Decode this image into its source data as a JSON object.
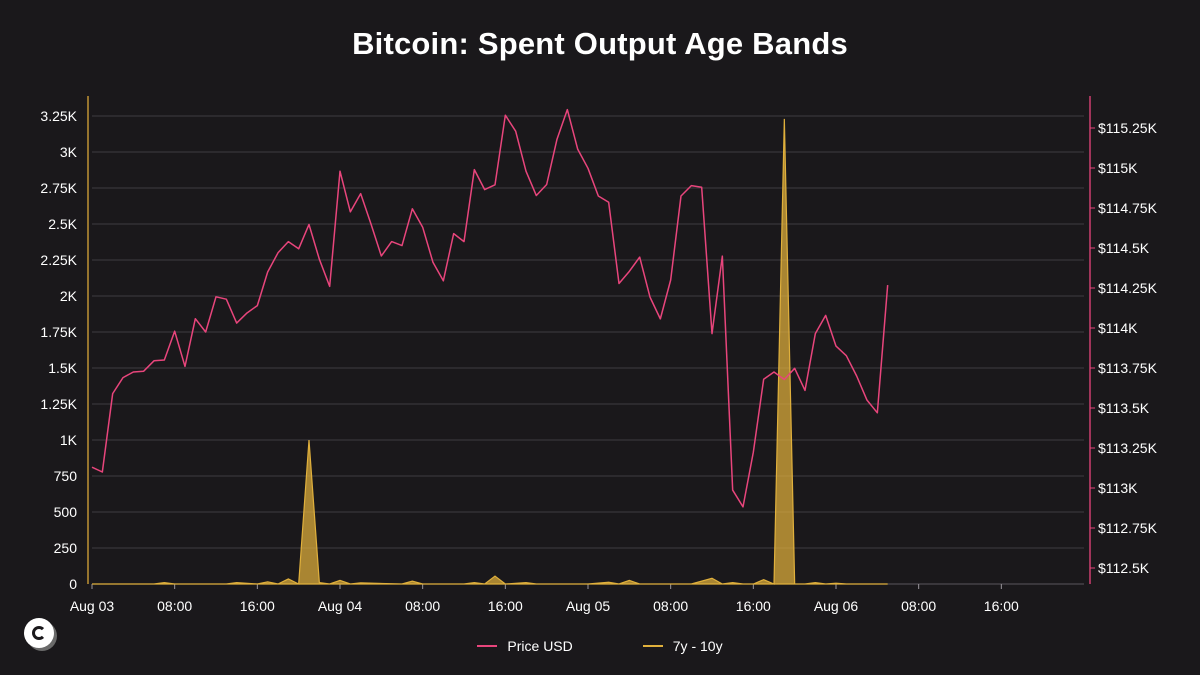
{
  "chart_data": {
    "type": "line",
    "title": "Bitcoin: Spent Output Age Bands",
    "x_tick_labels": [
      "Aug 03",
      "08:00",
      "16:00",
      "Aug 04",
      "08:00",
      "16:00",
      "Aug 05",
      "08:00",
      "16:00",
      "Aug 06",
      "08:00",
      "16:00"
    ],
    "x_tick_hours": [
      0,
      8,
      16,
      24,
      32,
      40,
      48,
      56,
      64,
      72,
      80,
      88
    ],
    "x_range_hours": [
      0,
      96
    ],
    "left_axis": {
      "ticks": [
        0,
        250,
        500,
        750,
        1000,
        1250,
        1500,
        1750,
        2000,
        2250,
        2500,
        2750,
        3000,
        3250
      ],
      "tick_labels": [
        "0",
        "250",
        "500",
        "750",
        "1K",
        "1.25K",
        "1.5K",
        "1.75K",
        "2K",
        "2.25K",
        "2.5K",
        "2.75K",
        "3K",
        "3.25K"
      ],
      "range": [
        0,
        3250
      ]
    },
    "right_axis": {
      "ticks": [
        112500,
        112750,
        113000,
        113250,
        113500,
        113750,
        114000,
        114250,
        114500,
        114750,
        115000,
        115250
      ],
      "tick_labels": [
        "$112.5K",
        "$112.75K",
        "$113K",
        "$113.25K",
        "$113.5K",
        "$113.75K",
        "$114K",
        "$114.25K",
        "$114.5K",
        "$114.75K",
        "$115K",
        "$115.25K"
      ],
      "range": [
        112500,
        115350
      ]
    },
    "grid": true,
    "legend_position": "bottom",
    "series": [
      {
        "name": "Price USD",
        "axis": "right",
        "color": "#e8457c",
        "x": [
          0,
          1,
          2,
          3,
          4,
          5,
          6,
          7,
          8,
          9,
          10,
          11,
          12,
          13,
          14,
          15,
          16,
          17,
          18,
          19,
          20,
          21,
          22,
          23,
          24,
          25,
          26,
          27,
          28,
          29,
          30,
          31,
          32,
          33,
          34,
          35,
          36,
          37,
          38,
          39,
          40,
          41,
          42,
          43,
          44,
          45,
          46,
          47,
          48,
          49,
          50,
          51,
          52,
          53,
          54,
          55,
          56,
          57,
          58,
          59,
          60,
          61,
          62,
          63,
          64,
          65,
          66,
          67,
          68,
          69,
          70,
          71,
          72,
          73,
          74,
          75,
          76,
          77
        ],
        "y": [
          113130,
          113100,
          113590,
          113690,
          113725,
          113730,
          113795,
          113800,
          113980,
          113760,
          114058,
          113975,
          114195,
          114180,
          114031,
          114094,
          114140,
          114350,
          114470,
          114540,
          114495,
          114647,
          114430,
          114260,
          114980,
          114726,
          114840,
          114650,
          114450,
          114540,
          114515,
          114745,
          114630,
          114410,
          114295,
          114590,
          114540,
          114990,
          114865,
          114895,
          115330,
          115230,
          114980,
          114828,
          114897,
          115180,
          115365,
          115118,
          114998,
          114825,
          114786,
          114278,
          114354,
          114443,
          114193,
          114057,
          114300,
          114825,
          114890,
          114880,
          113965,
          114449,
          112987,
          112882,
          113224,
          113680,
          113725,
          113678,
          113748,
          113610,
          113965,
          114079,
          113887,
          113827,
          113700,
          113549,
          113470,
          114268
        ]
      },
      {
        "name": "7y - 10y",
        "axis": "left",
        "color": "#e0b03c",
        "x": [
          0,
          6,
          7,
          8,
          13,
          14,
          16,
          17,
          18,
          19,
          20,
          21,
          22,
          23,
          24,
          25,
          26,
          30,
          31,
          32,
          36,
          37,
          38,
          39,
          40,
          42,
          43,
          48,
          50,
          51,
          52,
          53,
          54,
          58,
          60,
          61,
          62,
          63,
          64,
          65,
          66,
          67,
          68,
          69,
          70,
          71,
          72,
          73,
          77
        ],
        "y": [
          0,
          0,
          10,
          0,
          0,
          10,
          0,
          15,
          0,
          35,
          0,
          1000,
          10,
          0,
          25,
          0,
          8,
          0,
          20,
          0,
          0,
          10,
          0,
          55,
          0,
          10,
          0,
          0,
          12,
          0,
          25,
          0,
          0,
          0,
          40,
          0,
          10,
          0,
          0,
          30,
          0,
          3230,
          0,
          0,
          10,
          0,
          5,
          0,
          0
        ]
      }
    ]
  }
}
